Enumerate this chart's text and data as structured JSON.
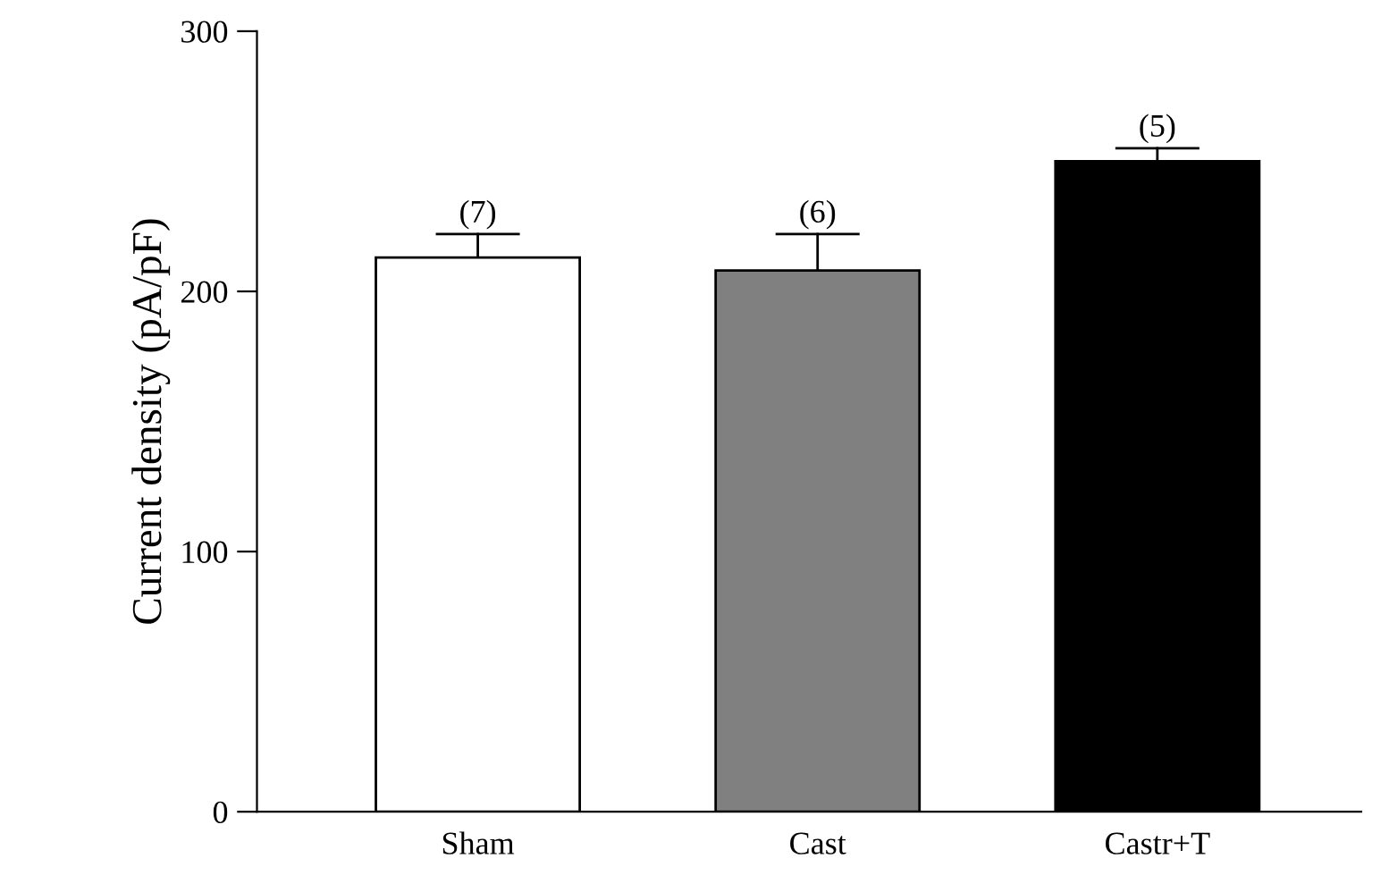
{
  "chart_data": {
    "type": "bar",
    "ylabel": "Current density (pA/pF)",
    "categories": [
      "Sham",
      "Cast",
      "Castr+T"
    ],
    "values": [
      213,
      208,
      250
    ],
    "colors": [
      "#ffffff",
      "#808080",
      "#000000"
    ],
    "errors": [
      [
        213,
        222
      ],
      [
        208,
        222
      ],
      [
        250,
        255
      ]
    ],
    "ylim": [
      0,
      300
    ],
    "yticks": [
      0,
      100,
      200,
      300
    ],
    "grid": false,
    "legend": false,
    "annotations": [
      {
        "text": "(7)",
        "x": "Sham",
        "y": 222
      },
      {
        "text": "(6)",
        "x": "Cast",
        "y": 222
      },
      {
        "text": "(5)",
        "x": "Castr+T",
        "y": 255
      }
    ]
  }
}
